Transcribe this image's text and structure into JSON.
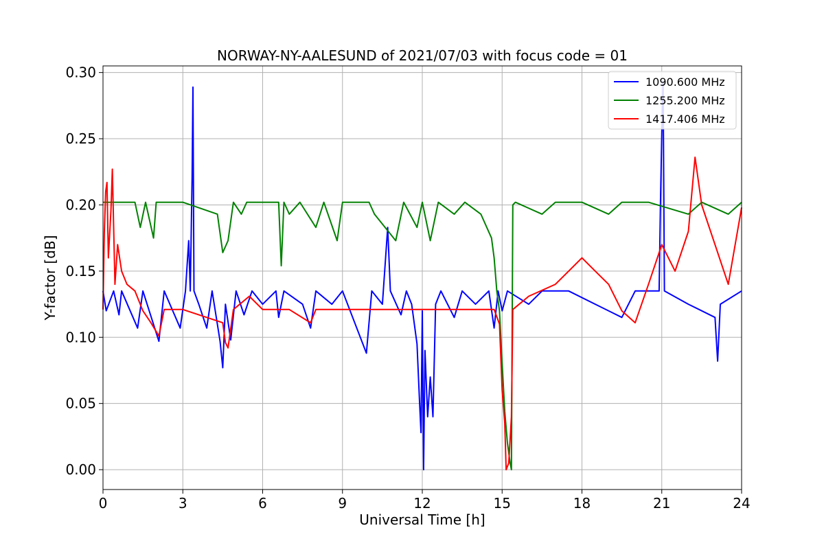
{
  "chart_data": {
    "type": "line",
    "title": "NORWAY-NY-AALESUND of 2021/07/03 with focus code = 01",
    "xlabel": "Universal Time [h]",
    "ylabel": "Y-factor [dB]",
    "xlim": [
      0,
      24
    ],
    "ylim": [
      -0.015,
      0.305
    ],
    "xticks": [
      0,
      3,
      6,
      9,
      12,
      15,
      18,
      21,
      24
    ],
    "xtick_labels": [
      "0",
      "3",
      "6",
      "9",
      "12",
      "15",
      "18",
      "21",
      "24"
    ],
    "yticks": [
      0.0,
      0.05,
      0.1,
      0.15,
      0.2,
      0.25,
      0.3
    ],
    "ytick_labels": [
      "0.00",
      "0.05",
      "0.10",
      "0.15",
      "0.20",
      "0.25",
      "0.30"
    ],
    "grid": true,
    "legend_position": "top-right",
    "series": [
      {
        "name": "1090.600 MHz",
        "color": "#0000ff",
        "points": [
          [
            0.0,
            0.135
          ],
          [
            0.12,
            0.12
          ],
          [
            0.4,
            0.135
          ],
          [
            0.6,
            0.117
          ],
          [
            0.7,
            0.135
          ],
          [
            1.3,
            0.107
          ],
          [
            1.5,
            0.135
          ],
          [
            2.1,
            0.097
          ],
          [
            2.3,
            0.135
          ],
          [
            2.9,
            0.107
          ],
          [
            3.1,
            0.135
          ],
          [
            3.22,
            0.173
          ],
          [
            3.28,
            0.135
          ],
          [
            3.35,
            0.222
          ],
          [
            3.38,
            0.289
          ],
          [
            3.42,
            0.135
          ],
          [
            3.6,
            0.125
          ],
          [
            3.9,
            0.107
          ],
          [
            4.1,
            0.135
          ],
          [
            4.4,
            0.097
          ],
          [
            4.5,
            0.077
          ],
          [
            4.6,
            0.125
          ],
          [
            4.8,
            0.098
          ],
          [
            5.0,
            0.135
          ],
          [
            5.3,
            0.117
          ],
          [
            5.6,
            0.135
          ],
          [
            6.0,
            0.125
          ],
          [
            6.5,
            0.135
          ],
          [
            6.6,
            0.115
          ],
          [
            6.8,
            0.135
          ],
          [
            7.5,
            0.125
          ],
          [
            7.8,
            0.107
          ],
          [
            8.0,
            0.135
          ],
          [
            8.6,
            0.125
          ],
          [
            9.0,
            0.135
          ],
          [
            9.9,
            0.088
          ],
          [
            10.1,
            0.135
          ],
          [
            10.5,
            0.125
          ],
          [
            10.7,
            0.183
          ],
          [
            10.8,
            0.135
          ],
          [
            11.2,
            0.117
          ],
          [
            11.4,
            0.135
          ],
          [
            11.6,
            0.125
          ],
          [
            11.8,
            0.095
          ],
          [
            11.9,
            0.05
          ],
          [
            11.95,
            0.028
          ],
          [
            12.0,
            0.12
          ],
          [
            12.05,
            0.0
          ],
          [
            12.1,
            0.09
          ],
          [
            12.2,
            0.04
          ],
          [
            12.3,
            0.07
          ],
          [
            12.4,
            0.04
          ],
          [
            12.5,
            0.125
          ],
          [
            12.7,
            0.135
          ],
          [
            13.2,
            0.115
          ],
          [
            13.5,
            0.135
          ],
          [
            14.0,
            0.125
          ],
          [
            14.5,
            0.135
          ],
          [
            14.7,
            0.107
          ],
          [
            14.85,
            0.135
          ],
          [
            15.0,
            0.12
          ],
          [
            15.2,
            0.135
          ],
          [
            16.0,
            0.125
          ],
          [
            16.5,
            0.135
          ],
          [
            17.5,
            0.135
          ],
          [
            18.5,
            0.125
          ],
          [
            19.5,
            0.115
          ],
          [
            20.0,
            0.135
          ],
          [
            20.9,
            0.135
          ],
          [
            20.95,
            0.2
          ],
          [
            21.0,
            0.255
          ],
          [
            21.05,
            0.293
          ],
          [
            21.1,
            0.135
          ],
          [
            22.0,
            0.125
          ],
          [
            23.0,
            0.115
          ],
          [
            23.1,
            0.082
          ],
          [
            23.2,
            0.125
          ],
          [
            24.0,
            0.135
          ]
        ]
      },
      {
        "name": "1255.200 MHz",
        "color": "#008000",
        "points": [
          [
            0.0,
            0.202
          ],
          [
            1.2,
            0.202
          ],
          [
            1.4,
            0.183
          ],
          [
            1.6,
            0.202
          ],
          [
            1.9,
            0.175
          ],
          [
            2.0,
            0.202
          ],
          [
            3.0,
            0.202
          ],
          [
            4.3,
            0.193
          ],
          [
            4.5,
            0.164
          ],
          [
            4.7,
            0.173
          ],
          [
            4.9,
            0.202
          ],
          [
            5.2,
            0.193
          ],
          [
            5.4,
            0.202
          ],
          [
            6.6,
            0.202
          ],
          [
            6.7,
            0.154
          ],
          [
            6.8,
            0.202
          ],
          [
            7.0,
            0.193
          ],
          [
            7.4,
            0.202
          ],
          [
            8.0,
            0.183
          ],
          [
            8.3,
            0.202
          ],
          [
            8.8,
            0.173
          ],
          [
            9.0,
            0.202
          ],
          [
            10.0,
            0.202
          ],
          [
            10.2,
            0.193
          ],
          [
            11.0,
            0.173
          ],
          [
            11.3,
            0.202
          ],
          [
            11.8,
            0.183
          ],
          [
            12.0,
            0.202
          ],
          [
            12.3,
            0.173
          ],
          [
            12.6,
            0.202
          ],
          [
            13.2,
            0.193
          ],
          [
            13.6,
            0.202
          ],
          [
            14.2,
            0.193
          ],
          [
            14.6,
            0.175
          ],
          [
            14.7,
            0.16
          ],
          [
            14.8,
            0.135
          ],
          [
            14.9,
            0.12
          ],
          [
            15.0,
            0.08
          ],
          [
            15.1,
            0.044
          ],
          [
            15.2,
            0.02
          ],
          [
            15.3,
            0.005
          ],
          [
            15.35,
            0.0
          ],
          [
            15.4,
            0.2
          ],
          [
            15.5,
            0.202
          ],
          [
            16.5,
            0.193
          ],
          [
            17.0,
            0.202
          ],
          [
            18.0,
            0.202
          ],
          [
            19.0,
            0.193
          ],
          [
            19.5,
            0.202
          ],
          [
            20.5,
            0.202
          ],
          [
            22.0,
            0.193
          ],
          [
            22.5,
            0.202
          ],
          [
            23.5,
            0.193
          ],
          [
            24.0,
            0.202
          ]
        ]
      },
      {
        "name": "1417.406 MHz",
        "color": "#ff0000",
        "points": [
          [
            0.0,
            0.121
          ],
          [
            0.05,
            0.179
          ],
          [
            0.1,
            0.21
          ],
          [
            0.15,
            0.217
          ],
          [
            0.2,
            0.16
          ],
          [
            0.3,
            0.196
          ],
          [
            0.35,
            0.227
          ],
          [
            0.45,
            0.14
          ],
          [
            0.55,
            0.17
          ],
          [
            0.7,
            0.15
          ],
          [
            0.9,
            0.14
          ],
          [
            1.2,
            0.135
          ],
          [
            1.5,
            0.12
          ],
          [
            1.8,
            0.111
          ],
          [
            2.1,
            0.101
          ],
          [
            2.3,
            0.121
          ],
          [
            3.0,
            0.121
          ],
          [
            4.5,
            0.111
          ],
          [
            4.6,
            0.096
          ],
          [
            4.7,
            0.092
          ],
          [
            4.9,
            0.121
          ],
          [
            5.5,
            0.131
          ],
          [
            6.0,
            0.121
          ],
          [
            7.0,
            0.121
          ],
          [
            7.8,
            0.111
          ],
          [
            8.0,
            0.121
          ],
          [
            10.0,
            0.121
          ],
          [
            12.5,
            0.121
          ],
          [
            14.7,
            0.121
          ],
          [
            14.9,
            0.11
          ],
          [
            15.0,
            0.06
          ],
          [
            15.1,
            0.035
          ],
          [
            15.15,
            0.0
          ],
          [
            15.25,
            0.005
          ],
          [
            15.35,
            0.04
          ],
          [
            15.4,
            0.121
          ],
          [
            16.0,
            0.131
          ],
          [
            17.0,
            0.14
          ],
          [
            17.5,
            0.15
          ],
          [
            18.0,
            0.16
          ],
          [
            18.5,
            0.15
          ],
          [
            19.0,
            0.14
          ],
          [
            19.5,
            0.12
          ],
          [
            20.0,
            0.111
          ],
          [
            20.5,
            0.14
          ],
          [
            21.0,
            0.17
          ],
          [
            21.5,
            0.15
          ],
          [
            22.0,
            0.18
          ],
          [
            22.25,
            0.236
          ],
          [
            22.5,
            0.2
          ],
          [
            23.0,
            0.17
          ],
          [
            23.5,
            0.14
          ],
          [
            24.0,
            0.198
          ]
        ]
      }
    ]
  }
}
